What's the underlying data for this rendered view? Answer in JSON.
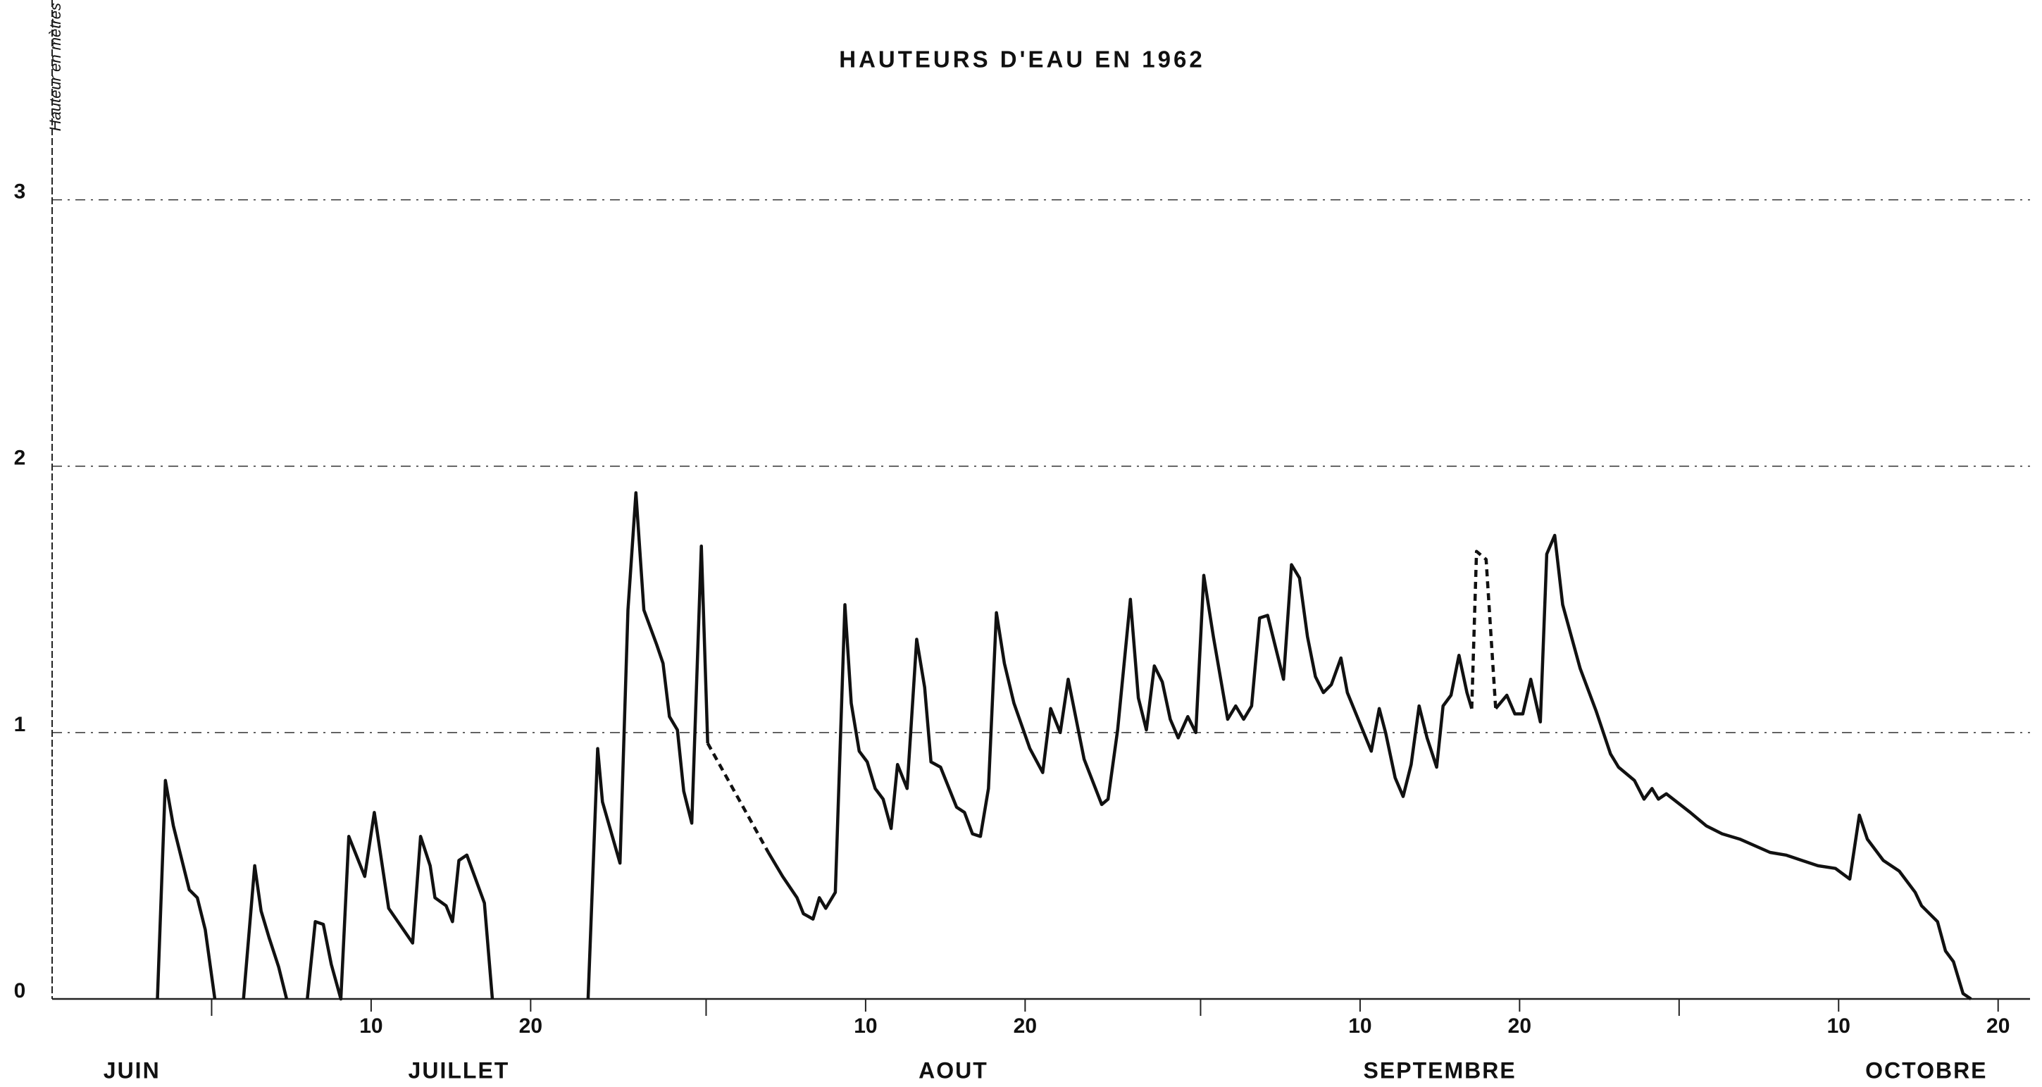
{
  "chart_data": {
    "type": "line",
    "title": "HAUTEURS D'EAU EN 1962",
    "y_label": "Hauteur en mètres",
    "xlim": [
      -10,
      114
    ],
    "ylim": [
      0,
      3.75
    ],
    "yticks": [
      0,
      1,
      2,
      3
    ],
    "xticks": [
      10,
      20,
      {
        "value": 41,
        "label": "10"
      },
      {
        "value": 51,
        "label": "20"
      },
      {
        "value": 72,
        "label": "10"
      },
      {
        "value": 82,
        "label": "20"
      },
      {
        "value": 102,
        "label": "10"
      },
      {
        "value": 112,
        "label": "20"
      }
    ],
    "months": [
      {
        "label": "JUIN",
        "start": -30,
        "end": 0
      },
      {
        "label": "JUILLET",
        "start": 0,
        "end": 31
      },
      {
        "label": "AOUT",
        "start": 31,
        "end": 62
      },
      {
        "label": "SEPTEMBRE",
        "start": 62,
        "end": 92
      },
      {
        "label": "OCTOBRE",
        "start": 92,
        "end": 123
      }
    ],
    "grid": true,
    "grid_style": "dashdot",
    "color": "#111111",
    "series": [
      {
        "dash": false,
        "x": [
          -3.4,
          -2.9,
          -2.4,
          -1.4,
          -0.9,
          -0.4,
          0.2
        ],
        "values": [
          0,
          0.82,
          0.65,
          0.41,
          0.38,
          0.26,
          0
        ]
      },
      {
        "dash": false,
        "x": [
          2.0,
          2.7,
          3.1,
          3.6,
          4.2,
          4.7
        ],
        "values": [
          0,
          0.5,
          0.33,
          0.23,
          0.12,
          0
        ]
      },
      {
        "dash": false,
        "x": [
          6.0,
          6.5,
          7.0,
          7.5,
          8.1,
          8.6,
          9.6,
          10.2,
          11.1,
          12.6,
          13.1,
          13.7,
          14.0,
          14.7,
          15.1,
          15.5,
          16.0,
          17.1,
          17.6
        ],
        "values": [
          0,
          0.29,
          0.28,
          0.13,
          0,
          0.61,
          0.46,
          0.7,
          0.34,
          0.21,
          0.61,
          0.5,
          0.38,
          0.35,
          0.29,
          0.52,
          0.54,
          0.36,
          0
        ]
      },
      {
        "dash": false,
        "x": [
          23.6,
          24.2,
          24.5,
          25.6,
          26.1,
          26.6,
          27.1,
          27.9,
          28.3,
          28.7,
          29.2,
          29.6,
          30.1,
          30.7,
          31.1
        ],
        "values": [
          0,
          0.94,
          0.74,
          0.51,
          1.46,
          1.9,
          1.46,
          1.33,
          1.26,
          1.06,
          1.01,
          0.78,
          0.66,
          1.7,
          0.96
        ]
      },
      {
        "dash": true,
        "x": [
          31.1,
          34.9
        ],
        "values": [
          0.96,
          0.55
        ]
      },
      {
        "dash": false,
        "x": [
          34.9,
          35.8,
          36.7,
          37.1,
          37.7,
          38.1,
          38.5,
          39.1,
          39.7,
          40.1,
          40.6,
          41.1,
          41.6,
          42.1,
          42.6,
          43.0,
          43.6,
          44.2,
          44.7,
          45.1,
          45.7,
          46.7,
          47.2,
          47.7,
          48.2,
          48.7,
          49.2,
          49.7,
          50.3,
          51.3,
          52.1,
          52.6,
          53.2,
          53.7,
          54.7,
          55.8,
          56.2,
          56.8,
          57.6,
          58.1,
          58.6,
          59.1,
          59.6,
          60.1,
          60.6,
          61.2,
          61.7,
          62.2,
          62.8,
          63.7,
          64.2,
          64.7,
          65.2,
          65.7,
          66.2,
          67.2,
          67.7,
          68.2,
          68.7,
          69.2,
          69.7,
          70.2,
          70.8,
          71.2,
          72.7,
          73.2,
          73.6,
          74.2,
          74.7,
          75.2,
          75.7,
          76.2,
          76.8,
          77.2,
          77.7,
          78.2,
          78.7,
          79.0
        ],
        "values": [
          0.55,
          0.46,
          0.38,
          0.32,
          0.3,
          0.38,
          0.34,
          0.4,
          1.48,
          1.11,
          0.93,
          0.89,
          0.79,
          0.75,
          0.64,
          0.88,
          0.79,
          1.35,
          1.17,
          0.89,
          0.87,
          0.72,
          0.7,
          0.62,
          0.61,
          0.79,
          1.45,
          1.26,
          1.11,
          0.94,
          0.85,
          1.09,
          1.0,
          1.2,
          0.9,
          0.73,
          0.75,
          1.01,
          1.5,
          1.13,
          1.01,
          1.25,
          1.19,
          1.05,
          0.98,
          1.06,
          1.0,
          1.59,
          1.36,
          1.05,
          1.1,
          1.05,
          1.1,
          1.43,
          1.44,
          1.2,
          1.63,
          1.58,
          1.36,
          1.21,
          1.15,
          1.18,
          1.28,
          1.15,
          0.93,
          1.09,
          1.0,
          0.83,
          0.76,
          0.88,
          1.1,
          0.98,
          0.87,
          1.1,
          1.14,
          1.29,
          1.15,
          1.09
        ]
      },
      {
        "dash": true,
        "x": [
          79.0,
          79.3,
          79.9,
          80.5
        ],
        "values": [
          1.09,
          1.68,
          1.65,
          1.09
        ]
      },
      {
        "dash": false,
        "x": [
          80.5,
          81.2,
          81.7,
          82.2,
          82.7,
          83.3,
          83.7,
          84.2,
          84.7,
          85.8,
          86.8,
          87.7,
          88.2,
          89.2,
          89.8,
          90.3,
          90.7,
          91.2,
          92.7,
          93.7,
          94.7,
          95.8,
          97.7,
          98.7,
          99.7,
          100.7,
          101.8,
          102.7,
          103.3,
          103.8,
          104.8,
          105.8,
          106.8,
          107.2,
          108.2,
          108.7,
          109.2,
          109.8,
          110.3
        ],
        "values": [
          1.09,
          1.14,
          1.07,
          1.07,
          1.2,
          1.04,
          1.67,
          1.74,
          1.48,
          1.24,
          1.08,
          0.92,
          0.87,
          0.82,
          0.75,
          0.79,
          0.75,
          0.77,
          0.7,
          0.65,
          0.62,
          0.6,
          0.55,
          0.54,
          0.52,
          0.5,
          0.49,
          0.45,
          0.69,
          0.6,
          0.52,
          0.48,
          0.4,
          0.35,
          0.29,
          0.18,
          0.14,
          0.02,
          0
        ]
      }
    ]
  }
}
